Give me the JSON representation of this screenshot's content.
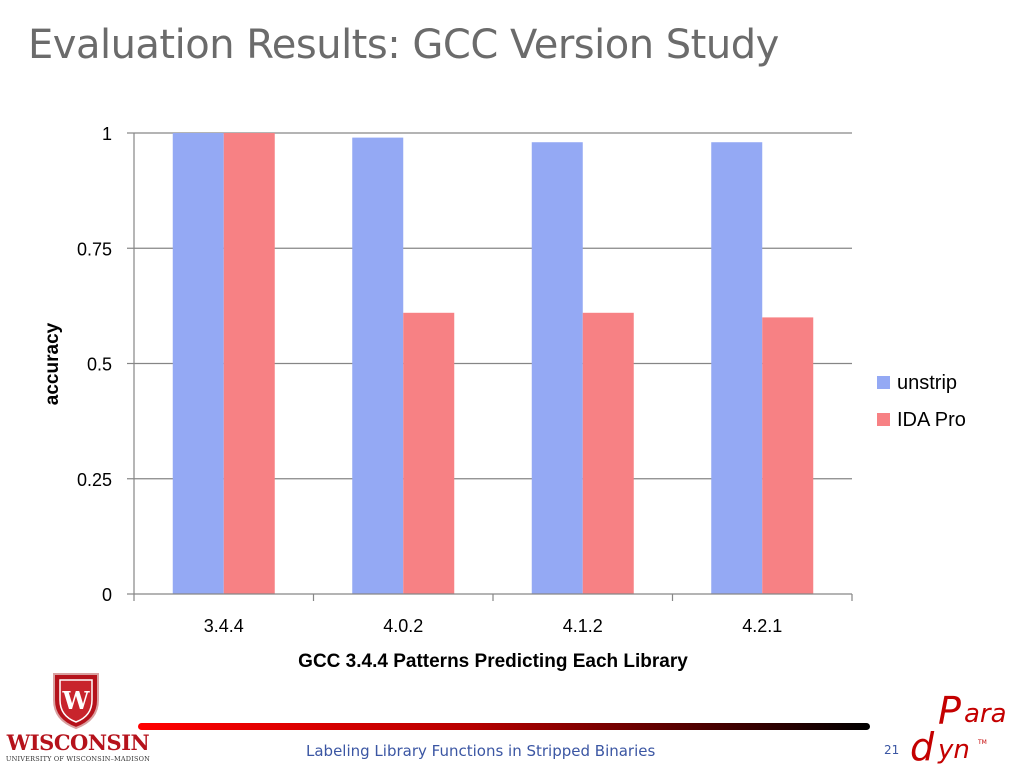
{
  "slide": {
    "title": "Evaluation Results: GCC Version Study",
    "footer_text": "Labeling Library Functions in Stripped Binaries",
    "page_number": "21"
  },
  "logos": {
    "left_name": "WISCONSIN",
    "left_subtitle": "UNIVERSITY OF WISCONSIN–MADISON",
    "right_text": "Paradyn"
  },
  "colors": {
    "unstrip": "#94a9f4",
    "ida_pro": "#f78184",
    "gridline": "#868686",
    "footer_red": "#cc0000",
    "uw_red": "#b5121b",
    "text_blue": "#3b56a3"
  },
  "chart_data": {
    "type": "bar",
    "title": "",
    "xlabel": "GCC 3.4.4 Patterns Predicting Each Library",
    "ylabel": "accuracy",
    "categories": [
      "3.4.4",
      "4.0.2",
      "4.1.2",
      "4.2.1"
    ],
    "series": [
      {
        "name": "unstrip",
        "values": [
          1.0,
          0.99,
          0.98,
          0.98
        ]
      },
      {
        "name": "IDA Pro",
        "values": [
          1.0,
          0.61,
          0.61,
          0.6
        ]
      }
    ],
    "ylim": [
      0,
      1
    ],
    "yticks": [
      0,
      0.25,
      0.5,
      0.75,
      1
    ],
    "ytick_labels": [
      "0",
      "0.25",
      "0.5",
      "0.75",
      "1"
    ],
    "grid": true,
    "legend_position": "right"
  }
}
